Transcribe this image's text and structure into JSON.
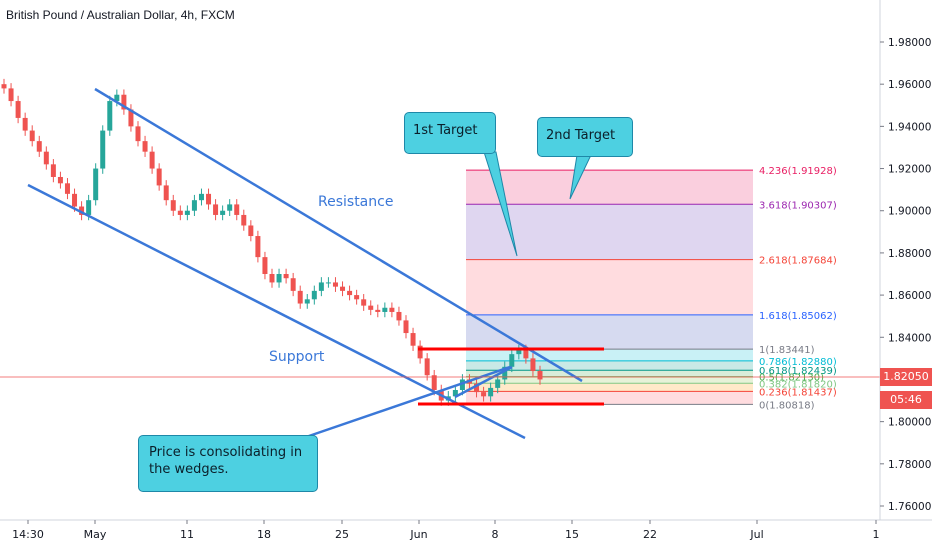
{
  "chart_data": {
    "type": "candlestick",
    "title": "British Pound / Australian Dollar, 4h, FXCM",
    "y_ticks": [
      "1.98000",
      "1.96000",
      "1.94000",
      "1.92000",
      "1.90000",
      "1.88000",
      "1.86000",
      "1.84000",
      "1.82000",
      "1.80000",
      "1.78000",
      "1.76000"
    ],
    "y_range": [
      1.755,
      1.995
    ],
    "x_ticks": [
      "14:30",
      "May",
      "11",
      "18",
      "25",
      "Jun",
      "8",
      "15",
      "22",
      "Jul",
      "1"
    ],
    "current_price": "1.82050",
    "countdown": "05:46",
    "close_series": [
      1.958,
      1.952,
      1.944,
      1.938,
      1.933,
      1.928,
      1.922,
      1.916,
      1.913,
      1.908,
      1.902,
      1.898,
      1.905,
      1.92,
      1.938,
      1.952,
      1.955,
      1.948,
      1.94,
      1.933,
      1.928,
      1.92,
      1.912,
      1.905,
      1.9,
      1.898,
      1.9,
      1.905,
      1.908,
      1.903,
      1.898,
      1.9,
      1.903,
      1.898,
      1.893,
      1.888,
      1.878,
      1.87,
      1.866,
      1.87,
      1.868,
      1.862,
      1.856,
      1.858,
      1.862,
      1.866,
      1.866,
      1.864,
      1.862,
      1.86,
      1.858,
      1.855,
      1.853,
      1.852,
      1.854,
      1.852,
      1.848,
      1.842,
      1.836,
      1.83,
      1.822,
      1.815,
      1.81,
      1.812,
      1.815,
      1.82,
      1.818,
      1.814,
      1.812,
      1.816,
      1.82,
      1.826,
      1.832,
      1.834,
      1.83,
      1.824,
      1.82
    ],
    "annotations": {
      "resistance_label": "Resistance",
      "support_label": "Support",
      "target1": "1st Target",
      "target2": "2nd Target",
      "note": "Price is consolidating in the wedges."
    },
    "fib_levels": [
      {
        "label": "4.236(1.91928)",
        "value": 1.91928,
        "color": "#e91e63"
      },
      {
        "label": "3.618(1.90307)",
        "value": 1.90307,
        "color": "#9c27b0"
      },
      {
        "label": "2.618(1.87684)",
        "value": 1.87684,
        "color": "#f44336"
      },
      {
        "label": "1.618(1.85062)",
        "value": 1.85062,
        "color": "#2962ff"
      },
      {
        "label": "1(1.83441)",
        "value": 1.83441,
        "color": "#787b86"
      },
      {
        "label": "0.786(1.82880)",
        "value": 1.8288,
        "color": "#00bcd4"
      },
      {
        "label": "0.618(1.82439)",
        "value": 1.82439,
        "color": "#009688"
      },
      {
        "label": "0.5(1.82130)",
        "value": 1.8213,
        "color": "#4caf50"
      },
      {
        "label": "0.382(1.81820)",
        "value": 1.8182,
        "color": "#81c784"
      },
      {
        "label": "0.236(1.81437)",
        "value": 1.81437,
        "color": "#f44336"
      },
      {
        "label": "0(1.80818)",
        "value": 1.80818,
        "color": "#787b86"
      }
    ],
    "colors": {
      "up": "#26a69a",
      "down": "#ef5350",
      "trendline": "#3b78d8",
      "level": "#ff0000"
    }
  }
}
